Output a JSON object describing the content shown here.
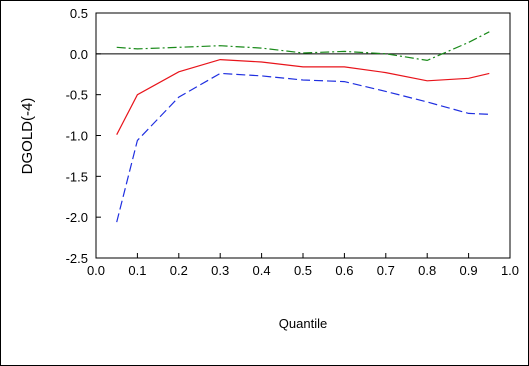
{
  "chart_data": {
    "type": "line",
    "title": "",
    "xlabel": "Quantile",
    "ylabel": "DGOLD(-4)",
    "xlim": [
      0.0,
      1.0
    ],
    "ylim": [
      -2.5,
      0.5
    ],
    "x_ticks": [
      "0.0",
      "0.1",
      "0.2",
      "0.3",
      "0.4",
      "0.5",
      "0.6",
      "0.7",
      "0.8",
      "0.9",
      "1.0"
    ],
    "y_ticks": [
      "0.5",
      "0.0",
      "-0.5",
      "-1.0",
      "-1.5",
      "-2.0",
      "-2.5"
    ],
    "reference_line_y": 0.0,
    "legend": "none",
    "grid": false,
    "series": [
      {
        "color": "#e8141b",
        "style": "solid",
        "x": [
          0.05,
          0.1,
          0.2,
          0.3,
          0.4,
          0.5,
          0.6,
          0.7,
          0.8,
          0.9,
          0.95
        ],
        "values": [
          -0.99,
          -0.5,
          -0.22,
          -0.07,
          -0.1,
          -0.16,
          -0.16,
          -0.23,
          -0.33,
          -0.3,
          -0.24
        ]
      },
      {
        "color": "#1f2fe0",
        "style": "dashed",
        "x": [
          0.05,
          0.1,
          0.2,
          0.3,
          0.4,
          0.5,
          0.6,
          0.7,
          0.8,
          0.9,
          0.95
        ],
        "values": [
          -2.06,
          -1.06,
          -0.53,
          -0.24,
          -0.27,
          -0.32,
          -0.34,
          -0.46,
          -0.59,
          -0.73,
          -0.74
        ]
      },
      {
        "color": "#1a8a1a",
        "style": "dashdot",
        "x": [
          0.05,
          0.1,
          0.2,
          0.3,
          0.4,
          0.5,
          0.6,
          0.7,
          0.8,
          0.9,
          0.95
        ],
        "values": [
          0.08,
          0.06,
          0.08,
          0.1,
          0.07,
          0.01,
          0.03,
          0.0,
          -0.08,
          0.14,
          0.27
        ]
      }
    ]
  }
}
